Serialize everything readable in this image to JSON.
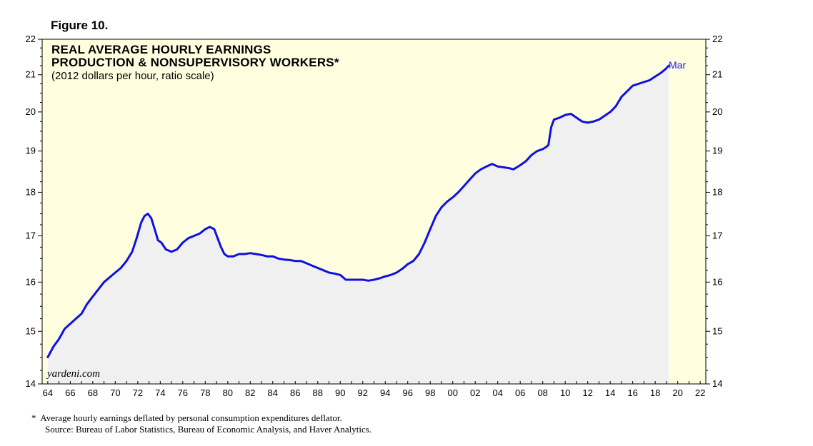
{
  "figure_label": "Figure 10.",
  "footnote": {
    "marker": "*",
    "text": "Average hourly earnings deflated by personal consumption expenditures deflator.",
    "source": "Source: Bureau of Labor Statistics, Bureau of Economic Analysis, and Haver Analytics."
  },
  "colors": {
    "plot_background": "#ffffe0",
    "area_fill": "#f0f0f0",
    "line": "#1010e0",
    "end_label": "#1a1aff"
  },
  "chart_data": {
    "type": "line",
    "title_line1": "REAL AVERAGE HOURLY EARNINGS",
    "title_line2": "PRODUCTION & NONSUPERVISORY WORKERS*",
    "subtitle": "(2012 dollars per hour, ratio scale)",
    "watermark": "yardeni.com",
    "end_label": "Mar",
    "y_scale": "log",
    "ylim": [
      14,
      22
    ],
    "xlim": [
      1963.5,
      2022.5
    ],
    "y_ticks": [
      14,
      15,
      16,
      17,
      18,
      19,
      20,
      21,
      22
    ],
    "y_tick_labels": [
      "14",
      "15",
      "16",
      "17",
      "18",
      "19",
      "20",
      "21",
      "22"
    ],
    "x_ticks": [
      1964,
      1966,
      1968,
      1970,
      1972,
      1974,
      1976,
      1978,
      1980,
      1982,
      1984,
      1986,
      1988,
      1990,
      1992,
      1994,
      1996,
      1998,
      2000,
      2002,
      2004,
      2006,
      2008,
      2010,
      2012,
      2014,
      2016,
      2018,
      2020,
      2022
    ],
    "x_tick_labels": [
      "64",
      "66",
      "68",
      "70",
      "72",
      "74",
      "76",
      "78",
      "80",
      "82",
      "84",
      "86",
      "88",
      "90",
      "92",
      "94",
      "96",
      "98",
      "00",
      "02",
      "04",
      "06",
      "08",
      "10",
      "12",
      "14",
      "16",
      "18",
      "20",
      "22"
    ],
    "series": [
      {
        "name": "Real average hourly earnings, production & nonsupervisory workers",
        "x": [
          1964.0,
          1964.5,
          1965.0,
          1965.5,
          1966.0,
          1966.5,
          1967.0,
          1967.5,
          1968.0,
          1968.5,
          1969.0,
          1969.5,
          1970.0,
          1970.5,
          1971.0,
          1971.5,
          1971.9,
          1972.3,
          1972.6,
          1972.9,
          1973.2,
          1973.5,
          1973.8,
          1974.1,
          1974.5,
          1975.0,
          1975.5,
          1976.0,
          1976.5,
          1977.0,
          1977.5,
          1978.0,
          1978.4,
          1978.8,
          1979.1,
          1979.4,
          1979.7,
          1980.0,
          1980.5,
          1981.0,
          1981.5,
          1982.0,
          1982.5,
          1983.0,
          1983.5,
          1984.0,
          1984.5,
          1985.0,
          1985.5,
          1986.0,
          1986.5,
          1987.0,
          1987.5,
          1988.0,
          1988.5,
          1989.0,
          1989.5,
          1990.0,
          1990.5,
          1991.0,
          1991.5,
          1992.0,
          1992.5,
          1993.0,
          1993.5,
          1994.0,
          1994.5,
          1995.0,
          1995.5,
          1996.0,
          1996.5,
          1997.0,
          1997.5,
          1998.0,
          1998.5,
          1999.0,
          1999.5,
          2000.0,
          2000.5,
          2001.0,
          2001.5,
          2002.0,
          2002.5,
          2003.0,
          2003.5,
          2004.0,
          2004.5,
          2005.0,
          2005.4,
          2005.7,
          2006.0,
          2006.5,
          2007.0,
          2007.5,
          2008.0,
          2008.3,
          2008.5,
          2008.75,
          2009.0,
          2009.5,
          2010.0,
          2010.5,
          2011.0,
          2011.5,
          2012.0,
          2012.5,
          2013.0,
          2013.5,
          2014.0,
          2014.5,
          2015.0,
          2015.5,
          2016.0,
          2016.5,
          2017.0,
          2017.5,
          2018.0,
          2018.5,
          2018.9,
          2019.2
        ],
        "values": [
          14.5,
          14.7,
          14.85,
          15.05,
          15.15,
          15.25,
          15.35,
          15.55,
          15.7,
          15.85,
          16.0,
          16.1,
          16.2,
          16.3,
          16.45,
          16.65,
          16.95,
          17.3,
          17.45,
          17.5,
          17.4,
          17.15,
          16.9,
          16.85,
          16.7,
          16.65,
          16.7,
          16.85,
          16.95,
          17.0,
          17.05,
          17.15,
          17.2,
          17.15,
          16.95,
          16.75,
          16.6,
          16.55,
          16.55,
          16.6,
          16.6,
          16.62,
          16.6,
          16.58,
          16.55,
          16.55,
          16.5,
          16.48,
          16.47,
          16.45,
          16.45,
          16.4,
          16.35,
          16.3,
          16.25,
          16.2,
          16.18,
          16.15,
          16.05,
          16.05,
          16.05,
          16.05,
          16.03,
          16.05,
          16.08,
          16.12,
          16.15,
          16.2,
          16.28,
          16.38,
          16.45,
          16.6,
          16.85,
          17.15,
          17.45,
          17.65,
          17.78,
          17.88,
          18.0,
          18.15,
          18.3,
          18.45,
          18.55,
          18.62,
          18.68,
          18.62,
          18.6,
          18.58,
          18.55,
          18.6,
          18.65,
          18.75,
          18.9,
          19.0,
          19.05,
          19.1,
          19.15,
          19.6,
          19.8,
          19.85,
          19.92,
          19.95,
          19.85,
          19.75,
          19.72,
          19.75,
          19.8,
          19.9,
          20.0,
          20.15,
          20.4,
          20.55,
          20.7,
          20.75,
          20.8,
          20.85,
          20.95,
          21.05,
          21.15,
          21.25
        ]
      }
    ]
  }
}
